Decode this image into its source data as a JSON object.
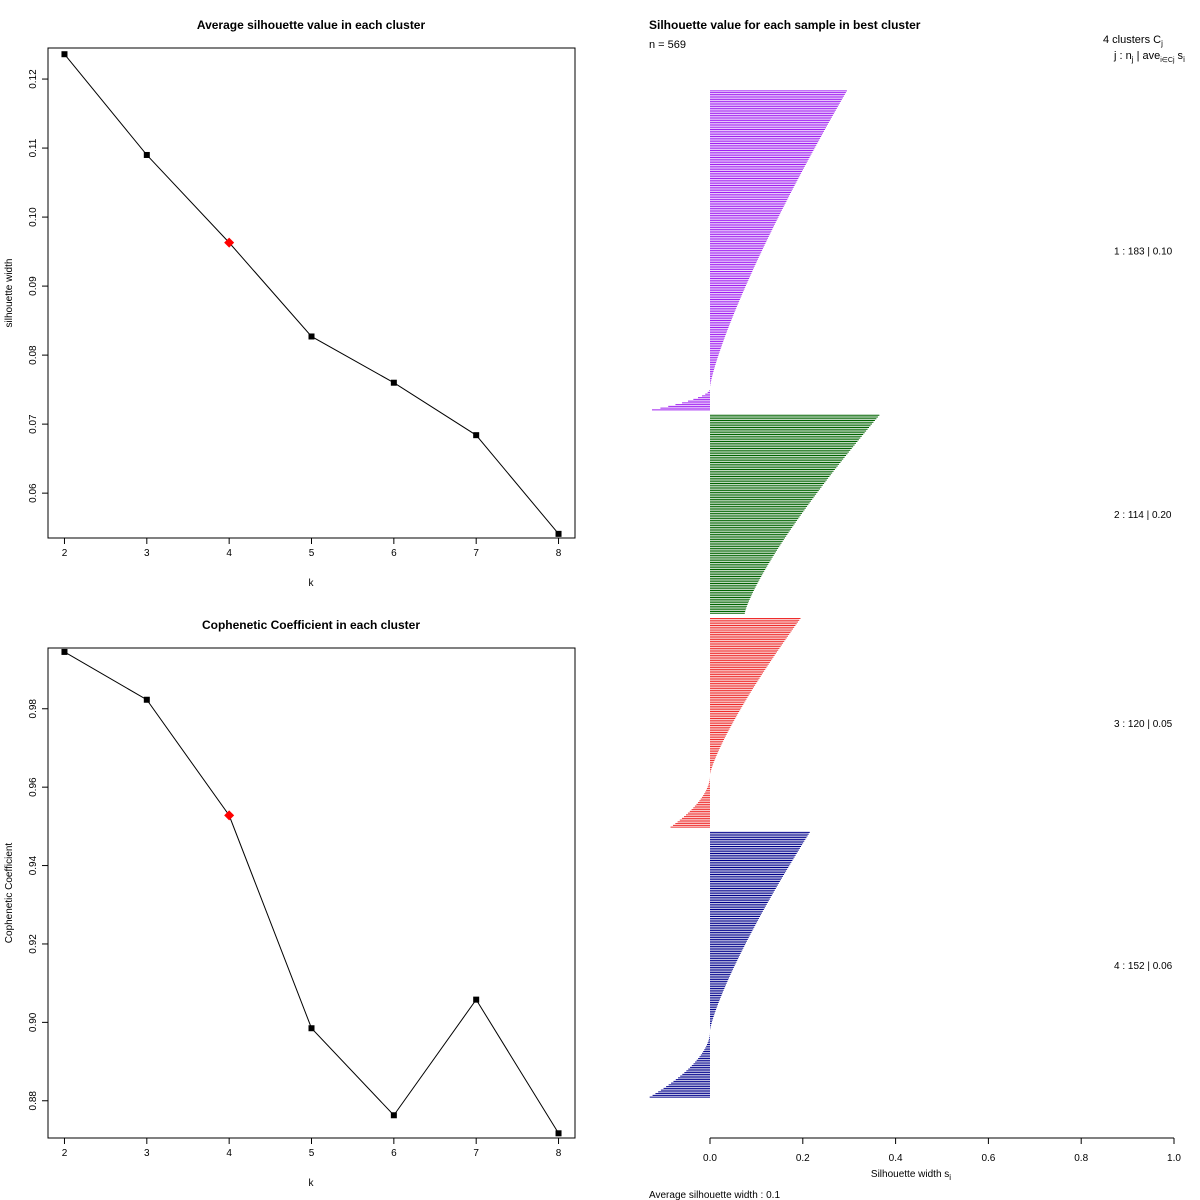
{
  "chart_data": [
    {
      "type": "line",
      "title": "Average silhouette value in each cluster",
      "xlabel": "k",
      "ylabel": "silhouette width",
      "x": [
        2,
        3,
        4,
        5,
        6,
        7,
        8
      ],
      "values": [
        0.1236,
        0.109,
        0.0963,
        0.0827,
        0.076,
        0.0684,
        0.0541
      ],
      "highlight_x": 4,
      "highlight_color": "#ff0000",
      "xticks": [
        "2",
        "3",
        "4",
        "5",
        "6",
        "7",
        "8"
      ],
      "yticks": [
        "0.06",
        "0.07",
        "0.08",
        "0.09",
        "0.10",
        "0.11",
        "0.12"
      ],
      "ylim": [
        0.0535,
        0.1245
      ]
    },
    {
      "type": "line",
      "title": "Cophenetic Coefficient in each cluster",
      "xlabel": "k",
      "ylabel": "Cophenetic Coefficient",
      "x": [
        2,
        3,
        4,
        5,
        6,
        7,
        8
      ],
      "values": [
        0.9945,
        0.9823,
        0.9528,
        0.8985,
        0.8763,
        0.9058,
        0.8717
      ],
      "highlight_x": 4,
      "highlight_color": "#ff0000",
      "xticks": [
        "2",
        "3",
        "4",
        "5",
        "6",
        "7",
        "8"
      ],
      "yticks": [
        "0.88",
        "0.90",
        "0.92",
        "0.94",
        "0.96",
        "0.98"
      ],
      "ylim": [
        0.8705,
        0.9955
      ]
    },
    {
      "type": "bar",
      "orientation": "horizontal",
      "title": "Silhouette value for each sample in best cluster",
      "n_label": "n = 569",
      "n": 569,
      "legend_title": "4 clusters  C",
      "legend_title_sub": "j",
      "legend_header": "j :  n",
      "legend_header_sub": "j",
      "legend_header_rest": " | ave",
      "legend_header_sub2": "i∈Cj",
      "legend_header_end": " s",
      "legend_header_sub3": "i",
      "xlabel": "Silhouette width s",
      "xlabel_sub": "i",
      "xlim": [
        0.0,
        1.0
      ],
      "xticks": [
        "0.0",
        "0.2",
        "0.4",
        "0.6",
        "0.8",
        "1.0"
      ],
      "footer": "Average silhouette width :  0.1",
      "clusters": [
        {
          "label": "1 :   183  |  0.10",
          "n": 183,
          "avg": 0.1,
          "color": "#a020f0",
          "max": 0.295,
          "min": -0.125,
          "neg_frac": 0.07
        },
        {
          "label": "2 :   114  |  0.20",
          "n": 114,
          "avg": 0.2,
          "color": "#006400",
          "max": 0.365,
          "min": 0.075,
          "neg_frac": 0.0
        },
        {
          "label": "3 :   120  |  0.05",
          "n": 120,
          "avg": 0.05,
          "color": "#ee2c2c",
          "max": 0.195,
          "min": -0.085,
          "neg_frac": 0.25
        },
        {
          "label": "4 :   152  |  0.06",
          "n": 152,
          "avg": 0.06,
          "color": "#00008b",
          "max": 0.215,
          "min": -0.13,
          "neg_frac": 0.25
        }
      ]
    }
  ]
}
